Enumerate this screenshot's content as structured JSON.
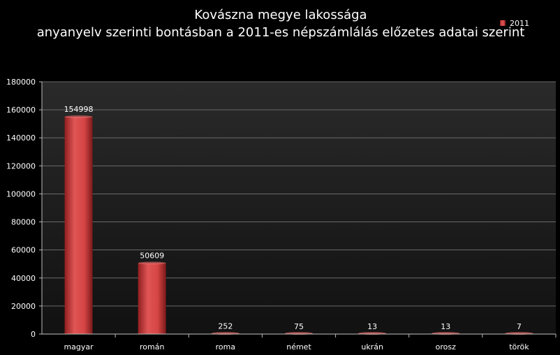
{
  "colors": {
    "background": "#000000",
    "plot_background": "#2b2b2b",
    "bar": "#d64545",
    "bar_dark": "#8f1f1f",
    "gridline": "#6a6a6a",
    "text": "#ffffff"
  },
  "chart_data": {
    "type": "bar",
    "title": "Kovászna megye lakossága",
    "subtitle": "anyanyelv szerinti bontásban a 2011-es népszámlálás előzetes adatai szerint",
    "categories": [
      "magyar",
      "román",
      "roma",
      "német",
      "ukrán",
      "orosz",
      "török"
    ],
    "series": [
      {
        "name": "2011",
        "values": [
          154998,
          50609,
          252,
          75,
          13,
          13,
          7
        ]
      }
    ],
    "ylim": [
      0,
      180000
    ],
    "yticks": [
      0,
      20000,
      40000,
      60000,
      80000,
      100000,
      120000,
      140000,
      160000,
      180000
    ],
    "ytick_labels": [
      "0",
      "20000",
      "40000",
      "60000",
      "80000",
      "100000",
      "120000",
      "140000",
      "160000",
      "180000"
    ],
    "data_labels": [
      "154998",
      "50609",
      "252",
      "75",
      "13",
      "13",
      "7"
    ],
    "grid": true,
    "legend": "top-right"
  }
}
